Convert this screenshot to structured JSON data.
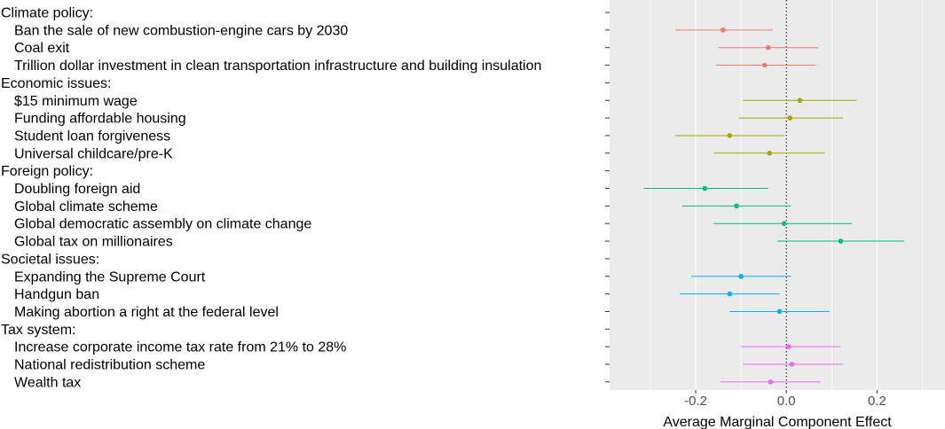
{
  "chart_data": {
    "type": "scatter",
    "subtype": "point-range (coefficient plot)",
    "xlabel": "Average Marginal Component Effect",
    "xlim": [
      -0.39,
      0.35
    ],
    "x_ticks": [
      -0.2,
      0.0,
      0.2
    ],
    "x_tick_labels": [
      "-0.2",
      "0.0",
      "0.2"
    ],
    "reference_line": 0.0,
    "grid": true,
    "legend": "none",
    "groups": [
      {
        "name": "Climate policy:",
        "color": "#F8766D",
        "items": [
          {
            "label": "Ban the sale of new combustion-engine cars by 2030",
            "estimate": -0.14,
            "lower": -0.245,
            "upper": -0.03
          },
          {
            "label": "Coal exit",
            "estimate": -0.04,
            "lower": -0.15,
            "upper": 0.07
          },
          {
            "label": "Trillion dollar investment in clean transportation infrastructure and building insulation",
            "estimate": -0.048,
            "lower": -0.155,
            "upper": 0.065
          }
        ]
      },
      {
        "name": "Economic issues:",
        "color": "#A3A500",
        "items": [
          {
            "label": "$15 minimum wage",
            "estimate": 0.03,
            "lower": -0.095,
            "upper": 0.155
          },
          {
            "label": "Funding affordable housing",
            "estimate": 0.008,
            "lower": -0.105,
            "upper": 0.125
          },
          {
            "label": "Student loan forgiveness",
            "estimate": -0.125,
            "lower": -0.245,
            "upper": -0.005
          },
          {
            "label": "Universal childcare/pre-K",
            "estimate": -0.037,
            "lower": -0.16,
            "upper": 0.085
          }
        ]
      },
      {
        "name": "Foreign policy:",
        "color": "#00BF7D",
        "items": [
          {
            "label": "Doubling foreign aid",
            "estimate": -0.18,
            "lower": -0.315,
            "upper": -0.04
          },
          {
            "label": "Global climate scheme",
            "estimate": -0.11,
            "lower": -0.23,
            "upper": 0.01
          },
          {
            "label": "Global democratic assembly on climate change",
            "estimate": -0.005,
            "lower": -0.16,
            "upper": 0.145
          },
          {
            "label": "Global tax on millionaires",
            "estimate": 0.12,
            "lower": -0.02,
            "upper": 0.26
          }
        ]
      },
      {
        "name": "Societal issues:",
        "color": "#00B0F6",
        "items": [
          {
            "label": "Expanding the Supreme Court",
            "estimate": -0.1,
            "lower": -0.21,
            "upper": 0.01
          },
          {
            "label": "Handgun ban",
            "estimate": -0.125,
            "lower": -0.235,
            "upper": -0.015
          },
          {
            "label": "Making abortion a right at the federal level",
            "estimate": -0.015,
            "lower": -0.125,
            "upper": 0.095
          }
        ]
      },
      {
        "name": "Tax system:",
        "color": "#E76BF3",
        "items": [
          {
            "label": "Increase corporate income tax rate from 21% to 28%",
            "estimate": 0.005,
            "lower": -0.1,
            "upper": 0.12
          },
          {
            "label": "National redistribution scheme",
            "estimate": 0.012,
            "lower": -0.095,
            "upper": 0.125
          },
          {
            "label": "Wealth tax",
            "estimate": -0.035,
            "lower": -0.145,
            "upper": 0.075
          }
        ]
      }
    ]
  }
}
